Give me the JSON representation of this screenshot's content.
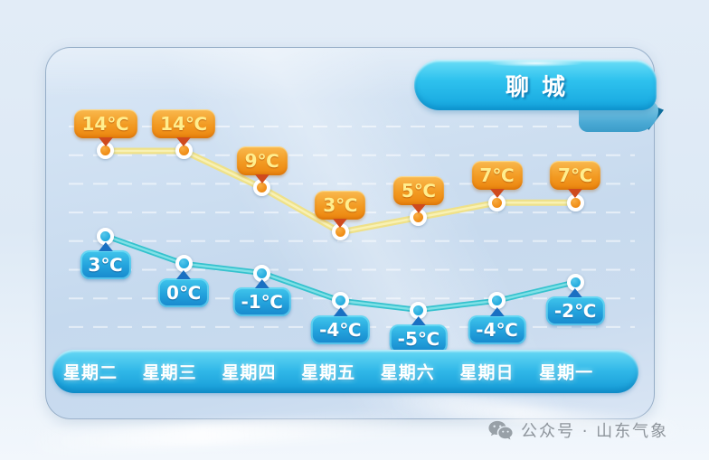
{
  "header": {
    "city": "聊城"
  },
  "footer": {
    "wechat_icon": "wechat-icon",
    "watermark_text": "公众号 · 山东气象"
  },
  "chart_data": {
    "type": "line",
    "title": "聊城",
    "subtitle": "",
    "xlabel": "",
    "ylabel": "",
    "legend": "none",
    "grid": "dashed-horizontal-white",
    "categories": [
      "星期二",
      "星期三",
      "星期四",
      "星期五",
      "星期六",
      "星期日",
      "星期一"
    ],
    "unit": "℃",
    "series": [
      {
        "name": "high_temp",
        "values": [
          14,
          14,
          9,
          3,
          5,
          7,
          7
        ],
        "labels": [
          "14℃",
          "14℃",
          "9℃",
          "3℃",
          "5℃",
          "7℃",
          "7℃"
        ],
        "label_position": "above",
        "line_color": "#efe189",
        "line_highlight": "#f8f1b4",
        "marker_color": "#ef8b14",
        "marker_highlight": "#f9ad42",
        "label_text_color": "#ffee8e",
        "arrow_color": "#cf4a1d"
      },
      {
        "name": "low_temp",
        "values": [
          3,
          0,
          -1,
          -4,
          -5,
          -4,
          -2
        ],
        "labels": [
          "3℃",
          "0℃",
          "-1℃",
          "-4℃",
          "-5℃",
          "-4℃",
          "-2℃"
        ],
        "label_position": "below",
        "line_color": "#35c2ce",
        "line_highlight": "#7fe0e6",
        "marker_color": "#23aadd",
        "marker_highlight": "#55c8ec",
        "label_text_color": "#ffffff",
        "arrow_color": "#1a70c2"
      }
    ]
  }
}
